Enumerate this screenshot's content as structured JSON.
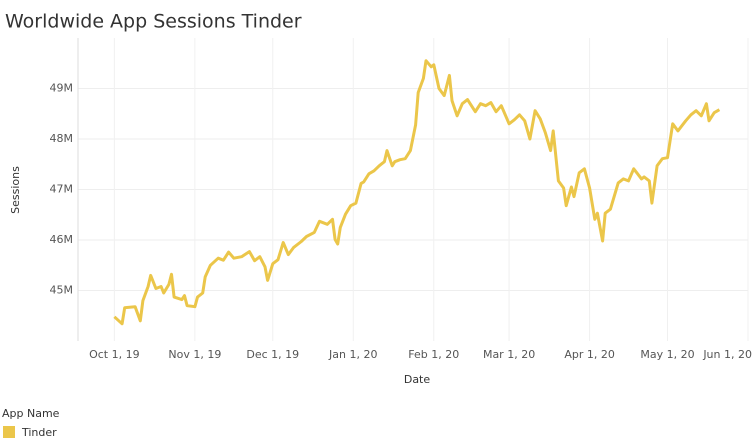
{
  "chart_data": {
    "type": "line",
    "title": "Worldwide App Sessions Tinder",
    "x_label": "Date",
    "y_label": "Sessions",
    "legend_title": "App Name",
    "grid": true,
    "xlim": [
      "2019-09-17",
      "2020-06-01"
    ],
    "xticks": [
      {
        "value": "2019-10-01",
        "label": "Oct 1, 19"
      },
      {
        "value": "2019-11-01",
        "label": "Nov 1, 19"
      },
      {
        "value": "2019-12-01",
        "label": "Dec 1, 19"
      },
      {
        "value": "2020-01-01",
        "label": "Jan 1, 20"
      },
      {
        "value": "2020-02-01",
        "label": "Feb 1, 20"
      },
      {
        "value": "2020-03-01",
        "label": "Mar 1, 20"
      },
      {
        "value": "2020-04-01",
        "label": "Apr 1, 20"
      },
      {
        "value": "2020-05-01",
        "label": "May 1, 20"
      },
      {
        "value": "2020-06-01",
        "label": "Jun 1, 20"
      }
    ],
    "ylim": [
      44000000,
      50000000
    ],
    "yticks": [
      {
        "value": 45000000,
        "label": "45M"
      },
      {
        "value": 46000000,
        "label": "46M"
      },
      {
        "value": 47000000,
        "label": "47M"
      },
      {
        "value": 48000000,
        "label": "48M"
      },
      {
        "value": 49000000,
        "label": "49M"
      }
    ],
    "x": [
      "2019-10-01",
      "2019-10-04",
      "2019-10-05",
      "2019-10-09",
      "2019-10-11",
      "2019-10-12",
      "2019-10-14",
      "2019-10-15",
      "2019-10-17",
      "2019-10-19",
      "2019-10-20",
      "2019-10-22",
      "2019-10-23",
      "2019-10-24",
      "2019-10-27",
      "2019-10-28",
      "2019-10-29",
      "2019-11-01",
      "2019-11-02",
      "2019-11-04",
      "2019-11-05",
      "2019-11-07",
      "2019-11-10",
      "2019-11-12",
      "2019-11-14",
      "2019-11-16",
      "2019-11-19",
      "2019-11-22",
      "2019-11-24",
      "2019-11-26",
      "2019-11-28",
      "2019-11-29",
      "2019-12-01",
      "2019-12-03",
      "2019-12-05",
      "2019-12-07",
      "2019-12-09",
      "2019-12-12",
      "2019-12-14",
      "2019-12-17",
      "2019-12-19",
      "2019-12-22",
      "2019-12-24",
      "2019-12-25",
      "2019-12-26",
      "2019-12-27",
      "2019-12-29",
      "2019-12-31",
      "2020-01-02",
      "2020-01-04",
      "2020-01-05",
      "2020-01-07",
      "2020-01-09",
      "2020-01-11",
      "2020-01-13",
      "2020-01-14",
      "2020-01-16",
      "2020-01-17",
      "2020-01-19",
      "2020-01-21",
      "2020-01-23",
      "2020-01-25",
      "2020-01-26",
      "2020-01-28",
      "2020-01-29",
      "2020-01-31",
      "2020-02-01",
      "2020-02-03",
      "2020-02-05",
      "2020-02-07",
      "2020-02-08",
      "2020-02-10",
      "2020-02-12",
      "2020-02-14",
      "2020-02-17",
      "2020-02-19",
      "2020-02-21",
      "2020-02-23",
      "2020-02-25",
      "2020-02-27",
      "2020-03-01",
      "2020-03-03",
      "2020-03-05",
      "2020-03-07",
      "2020-03-09",
      "2020-03-11",
      "2020-03-13",
      "2020-03-15",
      "2020-03-17",
      "2020-03-18",
      "2020-03-20",
      "2020-03-22",
      "2020-03-23",
      "2020-03-25",
      "2020-03-26",
      "2020-03-28",
      "2020-03-30",
      "2020-04-01",
      "2020-04-03",
      "2020-04-04",
      "2020-04-06",
      "2020-04-07",
      "2020-04-09",
      "2020-04-12",
      "2020-04-14",
      "2020-04-16",
      "2020-04-18",
      "2020-04-21",
      "2020-04-22",
      "2020-04-24",
      "2020-04-25",
      "2020-04-27",
      "2020-04-29",
      "2020-05-01",
      "2020-05-03",
      "2020-05-05",
      "2020-05-08",
      "2020-05-10",
      "2020-05-12",
      "2020-05-14",
      "2020-05-16",
      "2020-05-17",
      "2020-05-19",
      "2020-05-21"
    ],
    "series": [
      {
        "name": "Tinder",
        "color": "#ebc64a",
        "values": [
          44480000,
          44340000,
          44660000,
          44680000,
          44400000,
          44800000,
          45080000,
          45300000,
          45040000,
          45080000,
          44950000,
          45120000,
          45320000,
          44870000,
          44820000,
          44900000,
          44700000,
          44680000,
          44870000,
          44950000,
          45270000,
          45500000,
          45640000,
          45600000,
          45760000,
          45640000,
          45670000,
          45770000,
          45590000,
          45670000,
          45470000,
          45200000,
          45530000,
          45610000,
          45950000,
          45710000,
          45850000,
          45970000,
          46070000,
          46150000,
          46370000,
          46310000,
          46410000,
          46010000,
          45920000,
          46250000,
          46510000,
          46680000,
          46730000,
          47120000,
          47150000,
          47310000,
          47370000,
          47470000,
          47550000,
          47770000,
          47470000,
          47550000,
          47590000,
          47610000,
          47770000,
          48280000,
          48920000,
          49200000,
          49550000,
          49430000,
          49470000,
          49000000,
          48860000,
          49260000,
          48760000,
          48460000,
          48700000,
          48780000,
          48540000,
          48700000,
          48660000,
          48720000,
          48540000,
          48660000,
          48300000,
          48380000,
          48480000,
          48360000,
          48000000,
          48560000,
          48400000,
          48120000,
          47770000,
          48160000,
          47170000,
          47030000,
          46680000,
          47050000,
          46860000,
          47330000,
          47410000,
          47030000,
          46410000,
          46530000,
          45980000,
          46530000,
          46610000,
          47130000,
          47210000,
          47170000,
          47410000,
          47210000,
          47250000,
          47170000,
          46730000,
          47470000,
          47610000,
          47630000,
          48300000,
          48160000,
          48360000,
          48480000,
          48560000,
          48460000,
          48700000,
          48360000,
          48520000,
          48580000
        ]
      }
    ]
  }
}
